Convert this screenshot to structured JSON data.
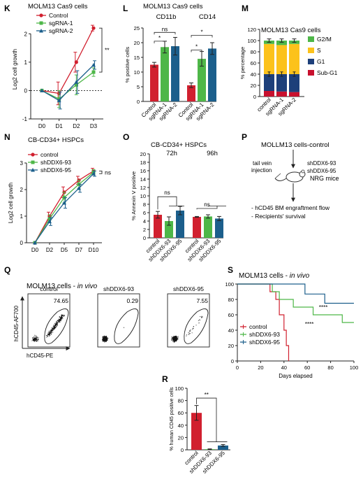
{
  "colors": {
    "red": "#d1202f",
    "green": "#4eb748",
    "blue": "#1c5f8c",
    "darkblue": "#1d3f7a",
    "yellow": "#fcc21b",
    "dark_red": "#c8102e",
    "ink": "#222222"
  },
  "panels": {
    "K": "K",
    "L": "L",
    "M": "M",
    "N": "N",
    "O": "O",
    "P": "P",
    "Q": "Q",
    "R": "R",
    "S": "S"
  },
  "P": {
    "title": "MOLLM13 cells-control",
    "tail_vein": "tail vein",
    "injection": "injection",
    "sh93": "shDDX6-93",
    "sh95": "shDDX6-95",
    "mice": "NRG mice",
    "bullet1": "- hCD45 BM engraftment flow",
    "bullet2": "- Recipients' survival"
  },
  "Q": {
    "title_main": "MOLM13 cells - ",
    "title_italic": "in vivo",
    "ylabel": "hCD45-AF700",
    "xlabel": "hCD45-PE",
    "plots": [
      {
        "label": "control",
        "pct": "74.65"
      },
      {
        "label": "shDDX6-93",
        "pct": "0.29"
      },
      {
        "label": "shDDX6-95",
        "pct": "7.55"
      }
    ]
  },
  "chart_data": [
    {
      "id": "K",
      "type": "line",
      "title": "MOLM13 Cas9 cells",
      "ylabel": "Log2 cell growth",
      "categories": [
        "D0",
        "D1",
        "D2",
        "D3"
      ],
      "ylim": [
        -1,
        2.5
      ],
      "yticks": [
        -1,
        0,
        1,
        2
      ],
      "series": [
        {
          "name": "Control",
          "color": "#d1202f",
          "marker": "circle",
          "values": [
            0,
            -0.1,
            1.0,
            2.2
          ],
          "errors": [
            0,
            0.4,
            0.35,
            0.1
          ]
        },
        {
          "name": "sgRNA-1",
          "color": "#4eb748",
          "marker": "square",
          "values": [
            0,
            -0.3,
            0.2,
            0.65
          ],
          "errors": [
            0,
            0.3,
            0.35,
            0.15
          ]
        },
        {
          "name": "sgRNA-2",
          "color": "#1c5f8c",
          "marker": "triangle",
          "values": [
            0,
            -0.35,
            0.3,
            0.9
          ],
          "errors": [
            0,
            0.3,
            0.4,
            0.15
          ]
        }
      ],
      "significance": "**"
    },
    {
      "id": "L",
      "type": "bar",
      "title": "MOLM13 Cas9 cells",
      "groups": [
        "CD11b",
        "CD14"
      ],
      "categories": [
        "Control",
        "sgRNA-1",
        "sgRNA-2",
        "Control",
        "sgRNA-1",
        "sgRNA-2"
      ],
      "values": [
        12.5,
        18.5,
        18.8,
        5.5,
        14.5,
        18.0
      ],
      "errors": [
        0.8,
        2.0,
        3.0,
        0.8,
        2.5,
        2.0
      ],
      "colors": [
        "#d1202f",
        "#4eb748",
        "#1c5f8c",
        "#d1202f",
        "#4eb748",
        "#1c5f8c"
      ],
      "ylabel": "% positive cells",
      "ylim": [
        0,
        25
      ],
      "yticks": [
        0,
        5,
        10,
        15,
        20,
        25
      ],
      "annotations": [
        "*",
        "ns",
        "*",
        "*"
      ]
    },
    {
      "id": "M",
      "type": "bar",
      "stacked": true,
      "title": "MOLM13 Cas9 cells",
      "categories": [
        "control",
        "sgRNA-1",
        "sgRNA-2"
      ],
      "ylabel": "% percentage",
      "ylim": [
        0,
        120
      ],
      "yticks": [
        0,
        20,
        40,
        60,
        80,
        100,
        120
      ],
      "series": [
        {
          "name": "Sub-G1",
          "color": "#c8102e",
          "values": [
            10,
            9,
            8
          ]
        },
        {
          "name": "G1",
          "color": "#1d3f7a",
          "values": [
            30,
            31,
            32
          ]
        },
        {
          "name": "S",
          "color": "#fcc21b",
          "values": [
            54,
            52,
            54
          ]
        },
        {
          "name": "G2/M",
          "color": "#4eb748",
          "values": [
            6,
            8,
            6
          ]
        }
      ]
    },
    {
      "id": "N",
      "type": "line",
      "title": "CB-CD34+ HSPCs",
      "ylabel": "Log2 cell growth",
      "categories": [
        "D0",
        "D2",
        "D5",
        "D7",
        "D10"
      ],
      "ylim": [
        0,
        3
      ],
      "yticks": [
        0,
        1,
        2,
        3
      ],
      "series": [
        {
          "name": "control",
          "color": "#d1202f",
          "marker": "circle",
          "values": [
            0,
            1.0,
            1.9,
            2.35,
            2.7
          ],
          "errors": [
            0,
            0.15,
            0.2,
            0.15,
            0.1
          ]
        },
        {
          "name": "shDDX6-93",
          "color": "#4eb748",
          "marker": "square",
          "values": [
            0,
            0.9,
            1.7,
            2.2,
            2.65
          ],
          "errors": [
            0,
            0.15,
            0.2,
            0.15,
            0.1
          ]
        },
        {
          "name": "shDDX6-95",
          "color": "#1c5f8c",
          "marker": "triangle",
          "values": [
            0,
            0.8,
            1.5,
            2.05,
            2.6
          ],
          "errors": [
            0,
            0.15,
            0.2,
            0.15,
            0.1
          ]
        }
      ],
      "significance": "ns"
    },
    {
      "id": "O",
      "type": "bar",
      "title": "CB-CD34+ HSPCs",
      "groups": [
        "72h",
        "96h"
      ],
      "categories": [
        "control",
        "shDDX6-93",
        "shDDX6-95",
        "control",
        "shDDX6-93",
        "shDDX6-95"
      ],
      "values": [
        5.5,
        4.0,
        6.5,
        5.0,
        5.1,
        4.6
      ],
      "errors": [
        0.8,
        1.0,
        1.0,
        0.1,
        0.4,
        0.5
      ],
      "colors": [
        "#d1202f",
        "#4eb748",
        "#1c5f8c",
        "#d1202f",
        "#4eb748",
        "#1c5f8c"
      ],
      "ylabel": "% Annexin V positive",
      "ylim": [
        0,
        20
      ],
      "yticks": [
        0,
        2,
        4,
        6,
        8,
        10,
        12,
        14,
        16,
        18,
        20
      ],
      "annotations": [
        "ns",
        "ns"
      ]
    },
    {
      "id": "R",
      "type": "bar",
      "categories": [
        "control",
        "shDDX6-93",
        "shDDX6-95"
      ],
      "values": [
        60,
        1,
        7
      ],
      "errors": [
        12,
        0.5,
        1.5
      ],
      "colors": [
        "#d1202f",
        "#4eb748",
        "#1c5f8c"
      ],
      "ylabel": "% human CD45 positive cells",
      "ylim": [
        0,
        100
      ],
      "yticks": [
        0,
        20,
        40,
        60,
        80,
        100
      ],
      "annotations": [
        "**"
      ]
    },
    {
      "id": "S",
      "type": "line",
      "step": true,
      "title_main": "MOLM13 cells - ",
      "title_italic": "in vivo",
      "xlabel": "Days elapsed",
      "xlim": [
        0,
        100
      ],
      "xticks": [
        0,
        20,
        40,
        60,
        80,
        100
      ],
      "ylim": [
        0,
        100
      ],
      "yticks": [
        0,
        20,
        40,
        60,
        80,
        100
      ],
      "series": [
        {
          "name": "control",
          "color": "#d1202f",
          "points": [
            [
              0,
              100
            ],
            [
              28,
              100
            ],
            [
              28,
              90
            ],
            [
              33,
              90
            ],
            [
              33,
              80
            ],
            [
              36,
              80
            ],
            [
              36,
              60
            ],
            [
              40,
              60
            ],
            [
              40,
              40
            ],
            [
              42,
              40
            ],
            [
              42,
              20
            ],
            [
              44,
              20
            ],
            [
              44,
              0
            ]
          ]
        },
        {
          "name": "shDDX6-93",
          "color": "#4eb748",
          "points": [
            [
              0,
              100
            ],
            [
              30,
              100
            ],
            [
              30,
              90
            ],
            [
              36,
              90
            ],
            [
              36,
              80
            ],
            [
              48,
              80
            ],
            [
              48,
              70
            ],
            [
              65,
              70
            ],
            [
              65,
              60
            ],
            [
              90,
              60
            ],
            [
              90,
              50
            ],
            [
              100,
              50
            ]
          ]
        },
        {
          "name": "shDDX6-95",
          "color": "#1c5f8c",
          "points": [
            [
              0,
              100
            ],
            [
              58,
              100
            ],
            [
              58,
              87
            ],
            [
              75,
              87
            ],
            [
              75,
              75
            ],
            [
              100,
              75
            ]
          ]
        }
      ],
      "annotations": [
        "****",
        "****"
      ]
    }
  ]
}
